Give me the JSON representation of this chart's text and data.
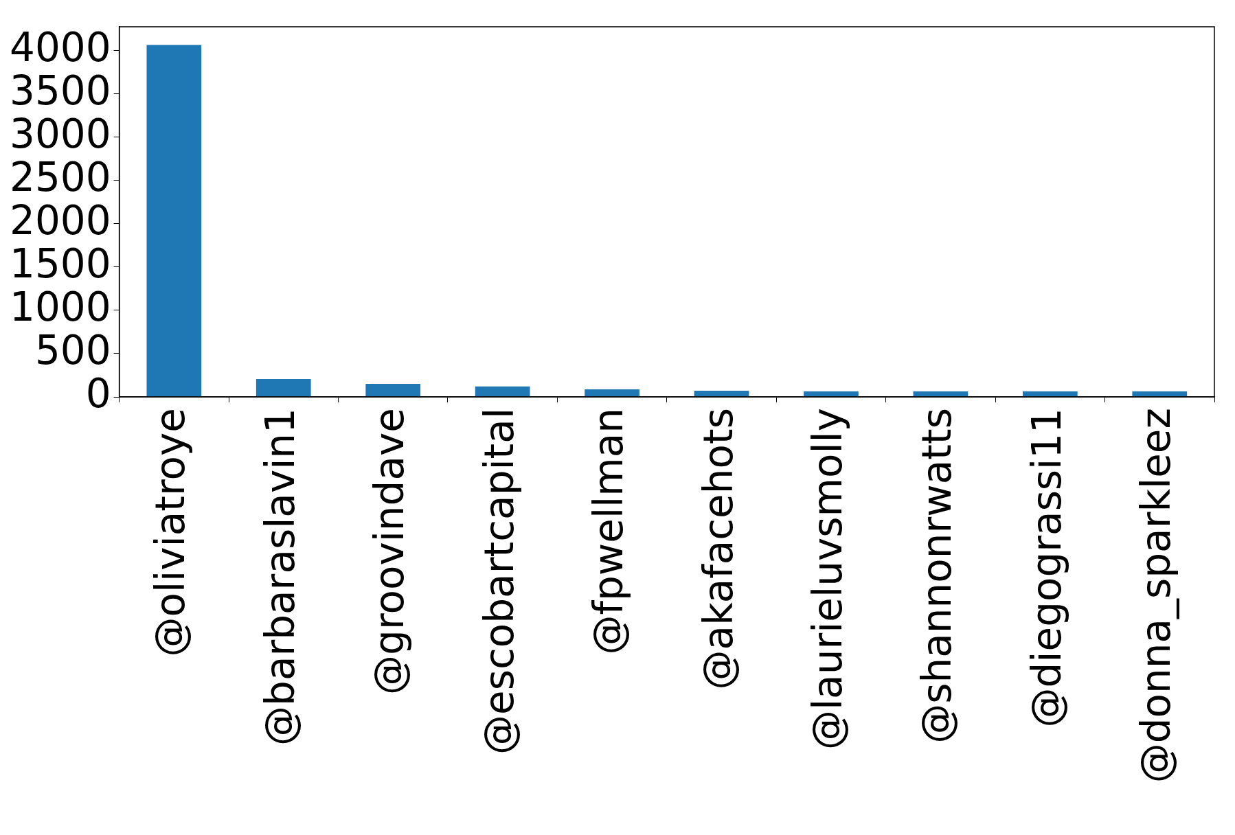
{
  "chart_data": {
    "type": "bar",
    "categories": [
      "@oliviatroye",
      "@barbaraslavin1",
      "@groovindave",
      "@escobartcapital",
      "@fpwellman",
      "@akafacehots",
      "@laurieluvsmolly",
      "@shannonrwatts",
      "@diegograssi11",
      "@donna_sparkleez"
    ],
    "values": [
      4065,
      206,
      150,
      120,
      88,
      72,
      63,
      63,
      63,
      63
    ],
    "color": "#1f77b4",
    "ylim": [
      0,
      4275
    ],
    "yticks": [
      0,
      500,
      1000,
      1500,
      2000,
      2500,
      3000,
      3500,
      4000
    ],
    "grid": false,
    "legend": false
  }
}
